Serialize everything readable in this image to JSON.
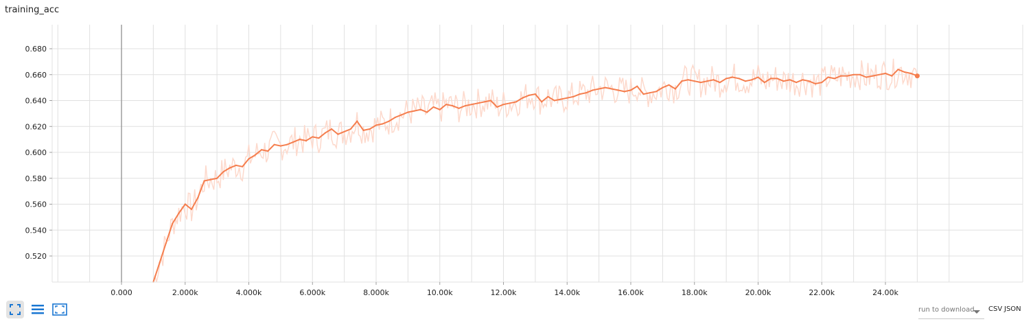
{
  "title": "training_acc",
  "controls": {
    "fit_icon": "fit-domain-icon",
    "list_icon": "toggle-log-list-icon",
    "expand_icon": "expand-chart-icon"
  },
  "download": {
    "placeholder": "run to download",
    "csv_label": "CSV",
    "json_label": "JSON"
  },
  "colors": {
    "smoothed": "#f57e4e",
    "raw": "#fdd9cc",
    "grid": "#e0e0e0",
    "zero_axis": "#9e9e9e",
    "active_button": "#e3e3e3",
    "icon": "#1976d2"
  },
  "chart_data": {
    "type": "line",
    "title": "training_acc",
    "xlabel": "",
    "ylabel": "",
    "xlim": [
      -20000,
      26900
    ],
    "ylim": [
      0.5,
      0.69
    ],
    "x_ticks": [
      0,
      2000,
      4000,
      6000,
      8000,
      10000,
      12000,
      14000,
      16000,
      18000,
      20000,
      22000,
      24000
    ],
    "x_tick_labels": [
      "0.000",
      "2.000k",
      "4.000k",
      "6.000k",
      "8.000k",
      "10.00k",
      "12.00k",
      "14.00k",
      "16.00k",
      "18.00k",
      "20.00k",
      "22.00k",
      "24.00k"
    ],
    "y_ticks": [
      0.52,
      0.54,
      0.56,
      0.58,
      0.6,
      0.62,
      0.64,
      0.66,
      0.68
    ],
    "y_tick_labels": [
      "0.520",
      "0.540",
      "0.560",
      "0.580",
      "0.600",
      "0.620",
      "0.640",
      "0.660",
      "0.680"
    ],
    "grid": true,
    "series": [
      {
        "x": [
          1000,
          1200,
          1400,
          1600,
          1800,
          2000,
          2200,
          2400,
          2600,
          2800,
          3000,
          3200,
          3400,
          3600,
          3800,
          4000,
          4200,
          4400,
          4600,
          4800,
          5000,
          5200,
          5400,
          5600,
          5800,
          6000,
          6200,
          6400,
          6600,
          6800,
          7000,
          7200,
          7400,
          7600,
          7800,
          8000,
          8200,
          8400,
          8600,
          8800,
          9000,
          9200,
          9400,
          9600,
          9800,
          10000,
          10200,
          10400,
          10600,
          10800,
          11000,
          11200,
          11400,
          11600,
          11800,
          12000,
          12200,
          12400,
          12600,
          12800,
          13000,
          13200,
          13400,
          13600,
          13800,
          14000,
          14200,
          14400,
          14600,
          14800,
          15000,
          15200,
          15400,
          15600,
          15800,
          16000,
          16200,
          16400,
          16600,
          16800,
          17000,
          17200,
          17400,
          17600,
          17800,
          18000,
          18200,
          18400,
          18600,
          18800,
          19000,
          19200,
          19400,
          19600,
          19800,
          20000,
          20200,
          20400,
          20600,
          20800,
          21000,
          21200,
          21400,
          21600,
          21800,
          22000,
          22200,
          22400,
          22600,
          22800,
          23000,
          23200,
          23400,
          23600,
          23800,
          24000,
          24200,
          24400,
          24600,
          24800,
          25000
        ],
        "y": [
          0.5,
          0.515,
          0.53,
          0.545,
          0.553,
          0.56,
          0.556,
          0.565,
          0.578,
          0.579,
          0.58,
          0.585,
          0.588,
          0.59,
          0.589,
          0.595,
          0.598,
          0.602,
          0.601,
          0.606,
          0.605,
          0.606,
          0.608,
          0.61,
          0.609,
          0.612,
          0.611,
          0.615,
          0.618,
          0.614,
          0.616,
          0.618,
          0.624,
          0.617,
          0.618,
          0.621,
          0.622,
          0.624,
          0.627,
          0.629,
          0.631,
          0.632,
          0.633,
          0.631,
          0.635,
          0.633,
          0.637,
          0.636,
          0.634,
          0.636,
          0.637,
          0.638,
          0.639,
          0.64,
          0.635,
          0.637,
          0.638,
          0.639,
          0.642,
          0.644,
          0.645,
          0.639,
          0.643,
          0.64,
          0.641,
          0.642,
          0.643,
          0.645,
          0.646,
          0.648,
          0.649,
          0.65,
          0.649,
          0.648,
          0.647,
          0.648,
          0.651,
          0.645,
          0.646,
          0.647,
          0.65,
          0.652,
          0.649,
          0.655,
          0.656,
          0.655,
          0.654,
          0.655,
          0.656,
          0.654,
          0.657,
          0.658,
          0.657,
          0.655,
          0.656,
          0.658,
          0.654,
          0.657,
          0.657,
          0.655,
          0.656,
          0.654,
          0.656,
          0.655,
          0.653,
          0.654,
          0.658,
          0.657,
          0.659,
          0.659,
          0.66,
          0.66,
          0.658,
          0.659,
          0.66,
          0.661,
          0.659,
          0.664,
          0.662,
          0.661,
          0.659
        ]
      }
    ]
  }
}
